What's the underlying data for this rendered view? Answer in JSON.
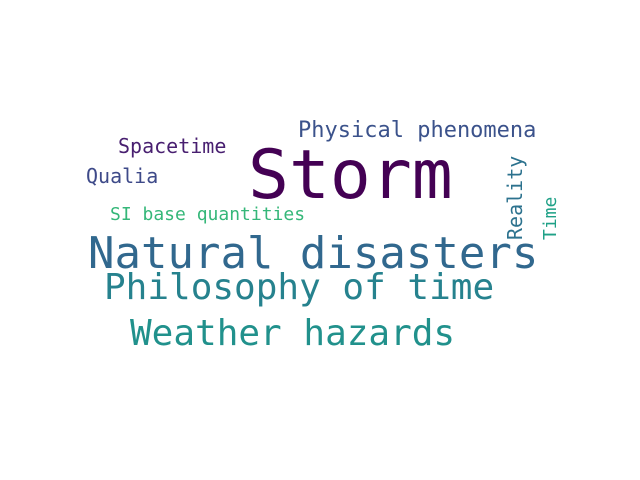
{
  "word_cloud": {
    "words": [
      {
        "id": "storm",
        "text": "Storm",
        "color": "#440154"
      },
      {
        "id": "natural_disasters",
        "text": "Natural disasters",
        "color": "#31688e"
      },
      {
        "id": "philosophy_of_time",
        "text": "Philosophy of time",
        "color": "#26828e"
      },
      {
        "id": "weather_hazards",
        "text": "Weather hazards",
        "color": "#21918c"
      },
      {
        "id": "physical_phenomena",
        "text": "Physical phenomena",
        "color": "#3b528b"
      },
      {
        "id": "spacetime",
        "text": "Spacetime",
        "color": "#481f70"
      },
      {
        "id": "qualia",
        "text": "Qualia",
        "color": "#3e4a89"
      },
      {
        "id": "si_base_quantities",
        "text": "SI base quantities",
        "color": "#35b779"
      },
      {
        "id": "reality",
        "text": "Reality",
        "color": "#2c728e"
      },
      {
        "id": "time",
        "text": "Time",
        "color": "#1fa187"
      }
    ]
  }
}
